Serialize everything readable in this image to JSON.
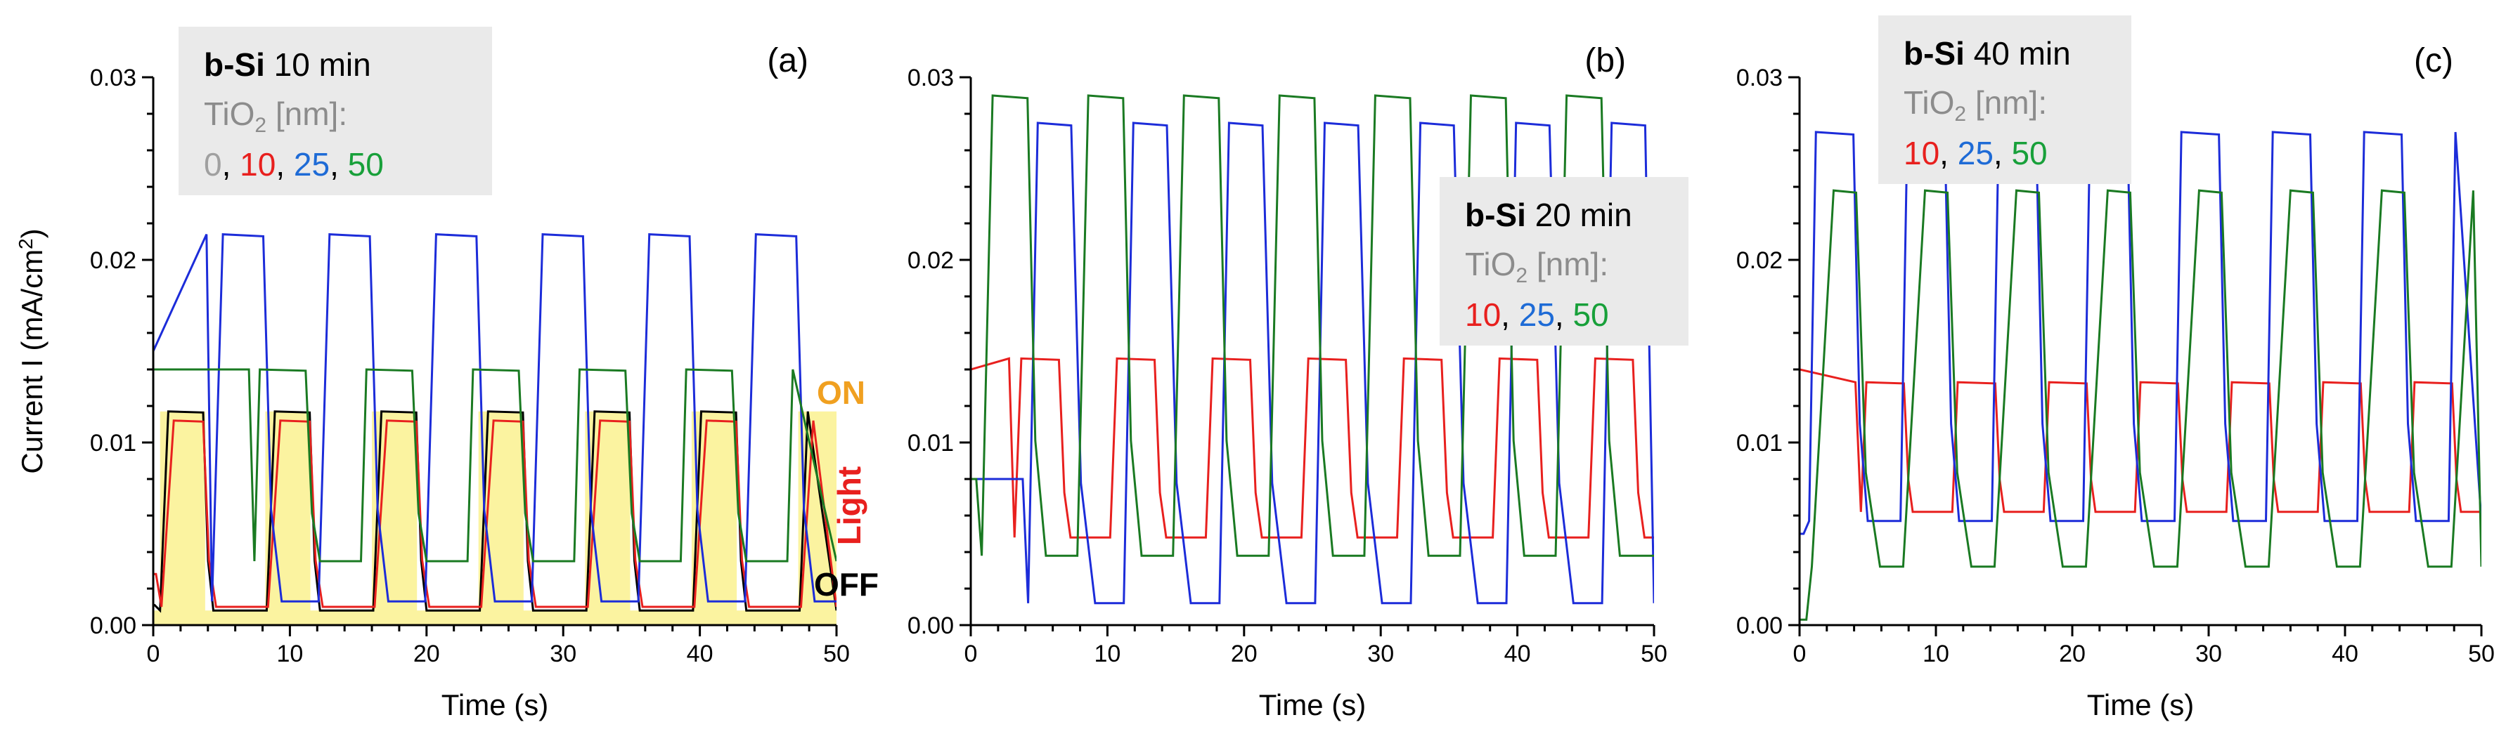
{
  "figure": {
    "ylabel": "Current I (mA/cm",
    "ylabel_sup": "2",
    "ylabel_close": ")"
  },
  "colors": {
    "t0": "#000000",
    "t10": "#e8201e",
    "t25": "#1c2cd9",
    "t50": "#1a7a22",
    "legend_t0": "#a0a0a0",
    "legend_t10": "#e8201e",
    "legend_t25": "#1e6bd6",
    "legend_t50": "#18a03a",
    "legend_gray": "#8c8c8c",
    "legend_box": "#eaeaea",
    "on_fill": "#fbf3a0",
    "on_text": "#f0a020",
    "light_text": "#e8201e"
  },
  "chart_data": [
    {
      "type": "line",
      "panel": "(a)",
      "xlabel": "Time (s)",
      "ylabel": "Current I (mA/cm2)",
      "xlim": [
        0,
        50
      ],
      "ylim": [
        0,
        0.03
      ],
      "xticks": [
        0,
        10,
        20,
        30,
        40,
        50
      ],
      "yticks": [
        0.0,
        0.01,
        0.02,
        0.03
      ],
      "xtick_labels": [
        "0",
        "10",
        "20",
        "30",
        "40",
        "50"
      ],
      "ytick_labels": [
        "0.00",
        "0.01",
        "0.02",
        "0.03"
      ],
      "legend": {
        "title_bold": "b-Si",
        "title_rest": " 10 min",
        "material": "TiO",
        "material_sub": "2",
        "unit": " [nm]:",
        "entries": [
          "0",
          "10",
          "25",
          "50"
        ]
      },
      "annotations": {
        "on": "ON",
        "light": "Light",
        "off": "OFF"
      },
      "light_on_intervals": [
        [
          0.5,
          3.8
        ],
        [
          8.2,
          11.5
        ],
        [
          16.0,
          19.3
        ],
        [
          23.8,
          27.1
        ],
        [
          31.6,
          34.9
        ],
        [
          39.4,
          42.7
        ],
        [
          47.2,
          50
        ]
      ],
      "series": [
        {
          "name": "0",
          "color_key": "t0",
          "period": 7.8,
          "start": 0.5,
          "duty": 3.3,
          "on": 0.0117,
          "off": 0.0008,
          "x0val": 0.0011,
          "rise": 0.6,
          "fall": 0.6
        },
        {
          "name": "10",
          "color_key": "t10",
          "period": 7.8,
          "start": 0.6,
          "duty": 3.2,
          "on": 0.0112,
          "off": 0.001,
          "x0val": 0.0028,
          "rise": 0.9,
          "fall": 0.8
        },
        {
          "name": "25",
          "color_key": "t25",
          "period": 7.8,
          "start": 4.3,
          "duty": 3.9,
          "on": 0.0214,
          "off": 0.0013,
          "x0val": 0.015,
          "rise": 0.8,
          "fall": 1.2
        },
        {
          "name": "50",
          "color_key": "t50",
          "period": 7.8,
          "start": 7.4,
          "duty": 3.9,
          "on": 0.014,
          "off": 0.0035,
          "x0val": 0.014,
          "rise": 0.4,
          "fall": 0.9
        }
      ]
    },
    {
      "type": "line",
      "panel": "(b)",
      "xlabel": "Time (s)",
      "xlim": [
        0,
        50
      ],
      "ylim": [
        0,
        0.03
      ],
      "xticks": [
        0,
        10,
        20,
        30,
        40,
        50
      ],
      "yticks": [
        0.0,
        0.01,
        0.02,
        0.03
      ],
      "xtick_labels": [
        "0",
        "10",
        "20",
        "30",
        "40",
        "50"
      ],
      "ytick_labels": [
        "0.00",
        "0.01",
        "0.02",
        "0.03"
      ],
      "legend": {
        "title_bold": "b-Si",
        "title_rest": " 20 min",
        "material": "TiO",
        "material_sub": "2",
        "unit": " [nm]:",
        "entries": [
          "10",
          "25",
          "50"
        ]
      },
      "series": [
        {
          "name": "10",
          "color_key": "t10",
          "period": 7.0,
          "start": 3.2,
          "duty": 3.4,
          "on": 0.0146,
          "off": 0.0048,
          "x0val": 0.014,
          "rise": 0.5,
          "fall": 0.7
        },
        {
          "name": "25",
          "color_key": "t25",
          "period": 7.0,
          "start": 4.2,
          "duty": 3.3,
          "on": 0.0275,
          "off": 0.0012,
          "x0val": 0.008,
          "rise": 0.7,
          "fall": 1.6
        },
        {
          "name": "50",
          "color_key": "t50",
          "period": 7.0,
          "start": 0.8,
          "duty": 3.5,
          "on": 0.029,
          "off": 0.0038,
          "x0val": 0.008,
          "rise": 0.8,
          "fall": 1.2
        }
      ]
    },
    {
      "type": "line",
      "panel": "(c)",
      "xlabel": "Time (s)",
      "xlim": [
        0,
        50
      ],
      "ylim": [
        0,
        0.03
      ],
      "xticks": [
        0,
        10,
        20,
        30,
        40,
        50
      ],
      "yticks": [
        0.0,
        0.01,
        0.02,
        0.03
      ],
      "xtick_labels": [
        "0",
        "10",
        "20",
        "30",
        "40",
        "50"
      ],
      "ytick_labels": [
        "0.00",
        "0.01",
        "0.02",
        "0.03"
      ],
      "legend": {
        "title_bold": "b-Si",
        "title_rest": " 40 min",
        "material": "TiO",
        "material_sub": "2",
        "unit": " [nm]:",
        "entries": [
          "10",
          "25",
          "50"
        ]
      },
      "series": [
        {
          "name": "10",
          "color_key": "t10",
          "period": 6.7,
          "start": 4.5,
          "duty": 3.3,
          "on": 0.0133,
          "off": 0.0062,
          "x0val": 0.014,
          "rise": 0.4,
          "fall": 0.5
        },
        {
          "name": "25",
          "color_key": "t25",
          "period": 6.7,
          "start": 0.7,
          "duty": 3.4,
          "on": 0.027,
          "off": 0.0057,
          "x0val": 0.005,
          "rise": 0.5,
          "fall": 0.9
        },
        {
          "name": "50",
          "color_key": "t50",
          "period": 6.7,
          "start": 0.9,
          "duty": 3.4,
          "on": 0.0238,
          "off": 0.0032,
          "x0val": 0.0003,
          "rise": 1.6,
          "fall": 1.6
        }
      ]
    }
  ]
}
